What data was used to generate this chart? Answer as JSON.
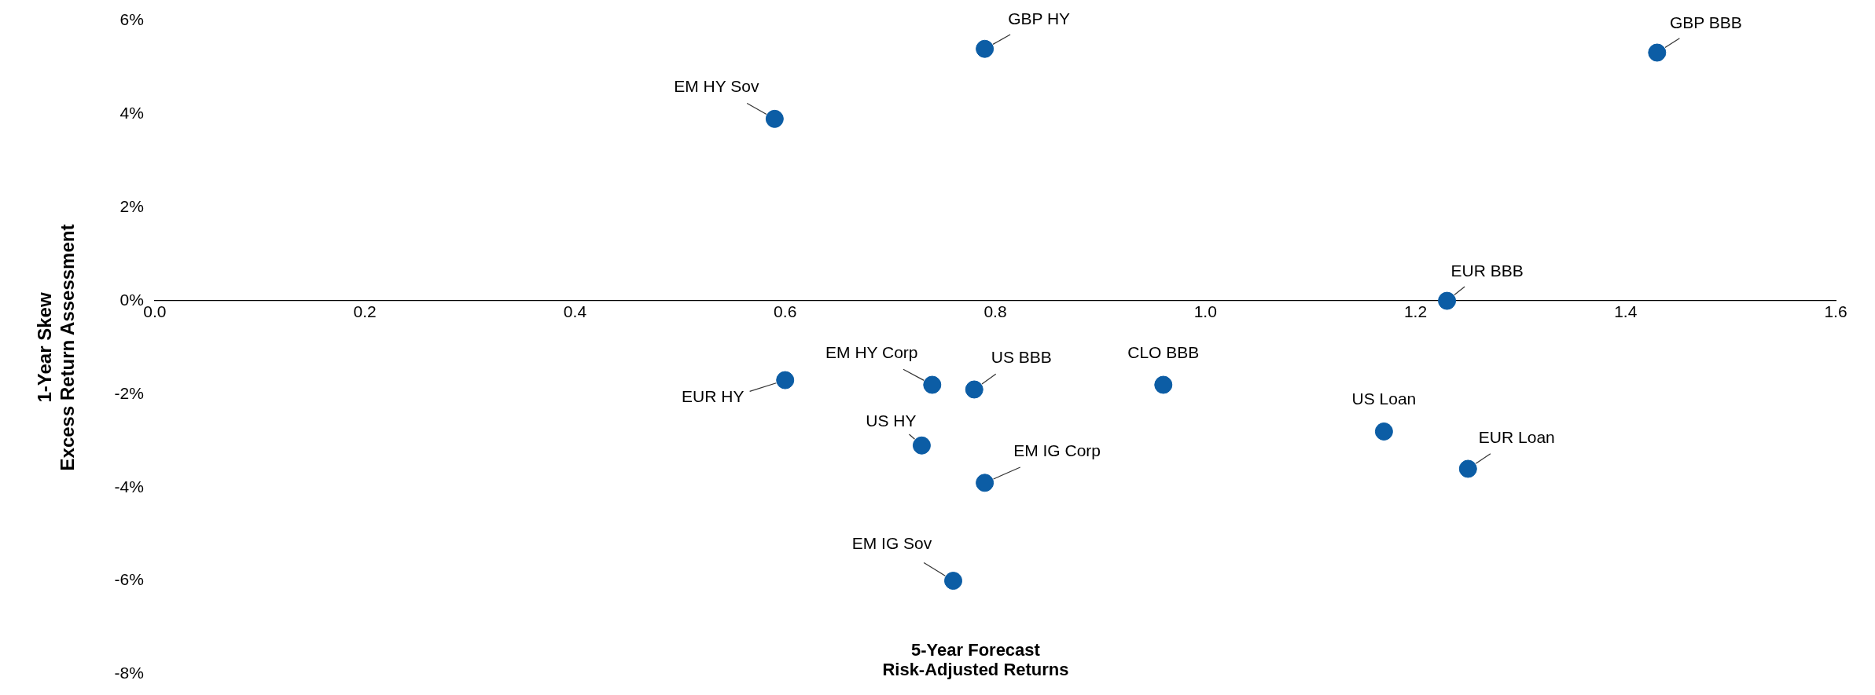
{
  "chart_data": {
    "type": "scatter",
    "xlabel": "5-Year Forecast\nRisk-Adjusted Returns",
    "ylabel": "1-Year Skew\nExcess Return Assessment",
    "x": [
      0.79,
      1.43,
      0.59,
      1.23,
      0.6,
      0.74,
      0.78,
      0.96,
      0.73,
      0.79,
      1.17,
      1.25,
      0.76
    ],
    "series": [
      {
        "color": "#0c5da5",
        "values": [
          5.4,
          5.32,
          3.9,
          0,
          -1.7,
          -1.8,
          -1.9,
          -1.8,
          -3.1,
          -3.9,
          -2.8,
          -3.6,
          -6.0
        ]
      }
    ],
    "marker": "circle",
    "grid": false,
    "legend": false,
    "xlim": [
      0,
      1.6
    ],
    "xticks": [
      {
        "value": 0,
        "label": "0.0"
      },
      {
        "value": 0.2,
        "label": "0.2"
      },
      {
        "value": 0.4,
        "label": "0.4"
      },
      {
        "value": 0.6,
        "label": "0.6"
      },
      {
        "value": 0.8,
        "label": "0.8"
      },
      {
        "value": 1,
        "label": "1.0"
      },
      {
        "value": 1.2,
        "label": "1.2"
      },
      {
        "value": 1.4,
        "label": "1.4"
      },
      {
        "value": 1.6,
        "label": "1.6"
      }
    ],
    "ylim": [
      -8,
      6
    ],
    "yticks": [
      {
        "value": -8,
        "label": "-8%"
      },
      {
        "value": -6,
        "label": "-6%"
      },
      {
        "value": -4,
        "label": "-4%"
      },
      {
        "value": -2,
        "label": "-2%"
      },
      {
        "value": 0,
        "label": "0%"
      },
      {
        "value": 2,
        "label": "2%"
      },
      {
        "value": 4,
        "label": "4%"
      },
      {
        "value": 6,
        "label": "6%"
      }
    ],
    "annotations": [
      {
        "text": "GBP HY",
        "x": 0.79,
        "y": 5.4
      },
      {
        "text": "GBP BBB",
        "x": 1.43,
        "y": 5.32
      },
      {
        "text": "EM HY Sov",
        "x": 0.59,
        "y": 3.9
      },
      {
        "text": "EUR BBB",
        "x": 1.23,
        "y": 0
      },
      {
        "text": "EUR HY",
        "x": 0.6,
        "y": -1.7
      },
      {
        "text": "EM HY Corp",
        "x": 0.74,
        "y": -1.8
      },
      {
        "text": "US BBB",
        "x": 0.78,
        "y": -1.9
      },
      {
        "text": "CLO BBB",
        "x": 0.96,
        "y": -1.8
      },
      {
        "text": "US HY",
        "x": 0.73,
        "y": -3.1
      },
      {
        "text": "EM IG Corp",
        "x": 0.79,
        "y": -3.9
      },
      {
        "text": "US Loan",
        "x": 1.17,
        "y": -2.8
      },
      {
        "text": "EUR Loan",
        "x": 1.25,
        "y": -3.6
      },
      {
        "text": "EM IG Sov",
        "x": 0.76,
        "y": -6.0
      }
    ]
  }
}
